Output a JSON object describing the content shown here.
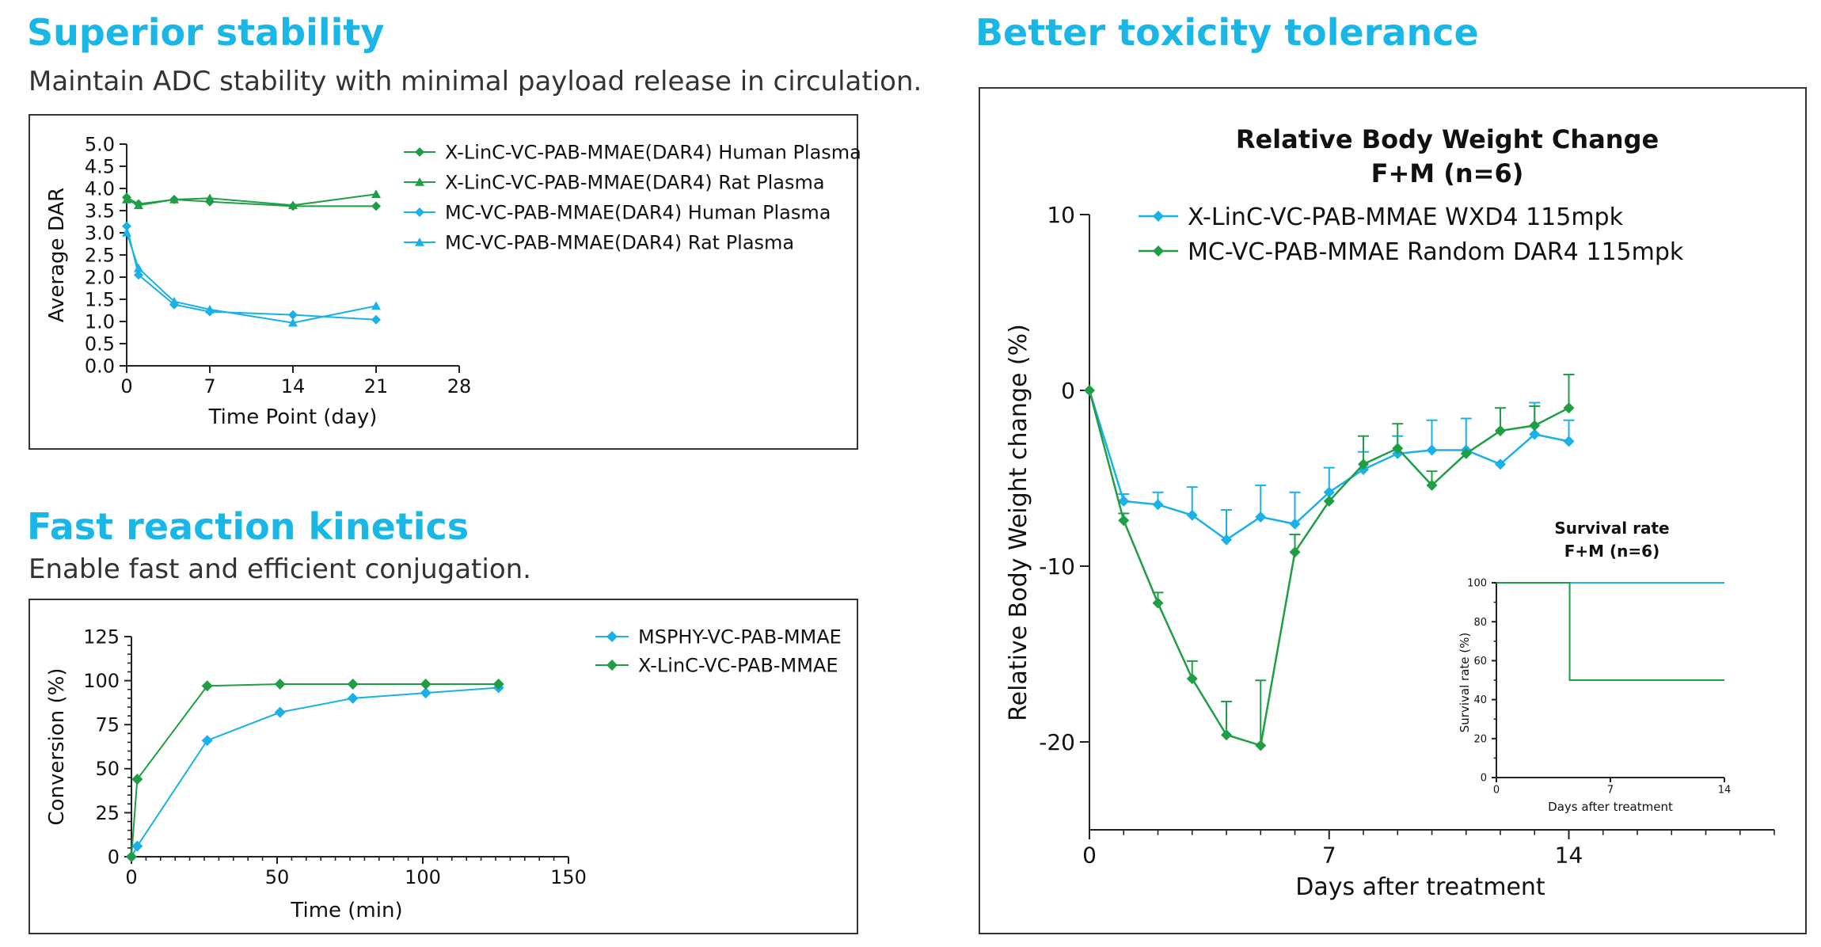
{
  "sections": {
    "stability": {
      "title": "Superior stability",
      "subtitle": "Maintain ADC stability with minimal payload release in circulation."
    },
    "kinetics": {
      "title": "Fast reaction kinetics",
      "subtitle": "Enable fast and efficient conjugation."
    },
    "toxicity": {
      "title": "Better toxicity tolerance"
    }
  },
  "colors": {
    "green": "#1f9e45",
    "blue": "#1ab0e8",
    "title": "#1ab7e6"
  },
  "chart_data": [
    {
      "id": "stability",
      "type": "line",
      "title": "",
      "xlabel": "Time Point (day)",
      "ylabel": "Average DAR",
      "xlim": [
        0,
        28
      ],
      "ylim": [
        0,
        5
      ],
      "xticks": [
        0,
        7,
        14,
        21,
        28
      ],
      "yticks": [
        0.0,
        0.5,
        1.0,
        1.5,
        2.0,
        2.5,
        3.0,
        3.5,
        4.0,
        4.5,
        5.0
      ],
      "ytick_labels": [
        "0.0",
        "0.5",
        "1.0",
        "1.5",
        "2.0",
        "2.5",
        "3.0",
        "3.5",
        "4.0",
        "4.5",
        "5.0"
      ],
      "legend_position": "top-right",
      "series": [
        {
          "name": "X-LinC-VC-PAB-MMAE(DAR4) Human Plasma",
          "color": "#1f9e45",
          "marker": "diamond",
          "x": [
            0,
            1,
            4,
            7,
            14,
            21
          ],
          "y": [
            3.8,
            3.65,
            3.75,
            3.7,
            3.6,
            3.6
          ]
        },
        {
          "name": "X-LinC-VC-PAB-MMAE(DAR4) Rat Plasma",
          "color": "#1f9e45",
          "marker": "triangle",
          "x": [
            0,
            1,
            4,
            7,
            14,
            21
          ],
          "y": [
            3.75,
            3.62,
            3.75,
            3.78,
            3.62,
            3.87
          ]
        },
        {
          "name": "MC-VC-PAB-MMAE(DAR4) Human Plasma",
          "color": "#1ab0e8",
          "marker": "diamond",
          "x": [
            0,
            1,
            4,
            7,
            14,
            21
          ],
          "y": [
            3.15,
            2.05,
            1.38,
            1.22,
            1.15,
            1.04
          ]
        },
        {
          "name": "MC-VC-PAB-MMAE(DAR4) Rat Plasma",
          "color": "#1ab0e8",
          "marker": "triangle",
          "x": [
            0,
            1,
            4,
            7,
            14,
            21
          ],
          "y": [
            3.0,
            2.2,
            1.45,
            1.27,
            0.97,
            1.35
          ]
        }
      ]
    },
    {
      "id": "kinetics",
      "type": "line",
      "title": "",
      "xlabel": "Time (min)",
      "ylabel": "Conversion (%)",
      "xlim": [
        0,
        150
      ],
      "ylim": [
        0,
        125
      ],
      "xticks": [
        0,
        50,
        100,
        150
      ],
      "yticks": [
        0,
        25,
        50,
        75,
        100,
        125
      ],
      "ytick_labels": [
        "0",
        "25",
        "50",
        "75",
        "100",
        "125"
      ],
      "legend_position": "top-right",
      "series": [
        {
          "name": "MSPHY-VC-PAB-MMAE",
          "color": "#1ab0e8",
          "marker": "diamond",
          "x": [
            0,
            2,
            26,
            51,
            76,
            101,
            126
          ],
          "y": [
            0,
            6,
            66,
            82,
            90,
            93,
            96
          ]
        },
        {
          "name": "X-LinC-VC-PAB-MMAE",
          "color": "#1f9e45",
          "marker": "diamond",
          "x": [
            0,
            2,
            26,
            51,
            76,
            101,
            126
          ],
          "y": [
            0,
            44,
            97,
            98,
            98,
            98,
            98
          ]
        }
      ]
    },
    {
      "id": "bodyweight",
      "type": "line",
      "title": "Relative Body Weight Change",
      "subtitle": "F+M (n=6)",
      "xlabel": "Days after treatment",
      "ylabel": "Relative Body Weight change (%)",
      "xlim": [
        0,
        20
      ],
      "ylim": [
        -25,
        10
      ],
      "xticks": [
        0,
        7,
        14
      ],
      "yticks": [
        -20,
        -10,
        0,
        10
      ],
      "ytick_labels": [
        "-20",
        "-10",
        "0",
        "10"
      ],
      "legend_position": "top-left",
      "series": [
        {
          "name": "X-LinC-VC-PAB-MMAE WXD4 115mpk",
          "color": "#1ab0e8",
          "marker": "diamond",
          "x": [
            0,
            1,
            2,
            3,
            4,
            5,
            6,
            7,
            8,
            9,
            10,
            11,
            12,
            13,
            14
          ],
          "y": [
            0,
            -6.3,
            -6.5,
            -7.1,
            -8.5,
            -7.2,
            -7.6,
            -5.8,
            -4.5,
            -3.6,
            -3.4,
            -3.4,
            -4.2,
            -2.5,
            -2.9
          ],
          "err": [
            0,
            0.4,
            0.7,
            1.6,
            1.7,
            1.8,
            1.8,
            1.4,
            1.0,
            1.0,
            1.7,
            1.8,
            0,
            1.8,
            1.2
          ]
        },
        {
          "name": "MC-VC-PAB-MMAE Random DAR4 115mpk",
          "color": "#1f9e45",
          "marker": "diamond",
          "x": [
            0,
            1,
            2,
            3,
            4,
            5,
            6,
            7,
            8,
            9,
            10,
            11,
            12,
            13,
            14
          ],
          "y": [
            0,
            -7.4,
            -12.1,
            -16.4,
            -19.6,
            -20.2,
            -9.2,
            -6.3,
            -4.2,
            -3.3,
            -5.4,
            -3.6,
            -2.3,
            -2.0,
            -1.0
          ],
          "err": [
            0,
            0.4,
            0.6,
            1.0,
            1.9,
            3.7,
            1.0,
            0,
            1.6,
            1.4,
            0.8,
            0,
            1.3,
            1.1,
            1.9
          ]
        }
      ]
    },
    {
      "id": "survival",
      "type": "line",
      "title": "Survival rate",
      "subtitle": "F+M (n=6)",
      "xlabel": "Days after treatment",
      "ylabel": "Survival rate (%)",
      "xlim": [
        0,
        14
      ],
      "ylim": [
        0,
        100
      ],
      "xticks": [
        0,
        7,
        14
      ],
      "yticks": [
        0,
        20,
        40,
        60,
        80,
        100
      ],
      "ytick_labels": [
        "0",
        "20",
        "40",
        "60",
        "80",
        "100"
      ],
      "series": [
        {
          "name": "",
          "color": "#1ab0e8",
          "step": true,
          "x": [
            0,
            14
          ],
          "y": [
            100,
            100
          ]
        },
        {
          "name": "",
          "color": "#1f9e45",
          "step": true,
          "x": [
            0,
            4.5,
            14
          ],
          "y": [
            100,
            50,
            50
          ]
        }
      ]
    }
  ]
}
